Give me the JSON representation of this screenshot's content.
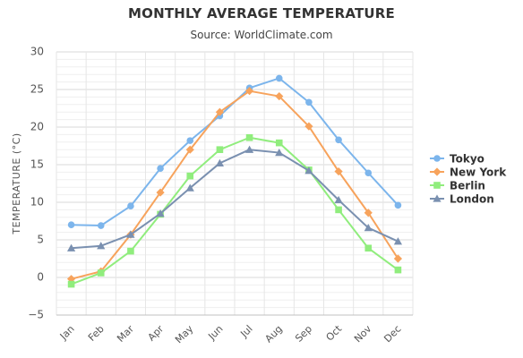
{
  "chart_data": {
    "type": "line",
    "title": "MONTHLY AVERAGE TEMPERATURE",
    "subtitle": "Source: WorldClimate.com",
    "xlabel": "",
    "ylabel": "TEMPERATURE (°C)",
    "categories": [
      "Jan",
      "Feb",
      "Mar",
      "Apr",
      "May",
      "Jun",
      "Jul",
      "Aug",
      "Sep",
      "Oct",
      "Nov",
      "Dec"
    ],
    "ylim": [
      -5,
      30
    ],
    "yticks": [
      -5,
      0,
      5,
      10,
      15,
      20,
      25,
      30
    ],
    "grid": true,
    "legend": "right",
    "series": [
      {
        "name": "Tokyo",
        "color": "#7cb5ec",
        "marker": "circle",
        "values": [
          7.0,
          6.9,
          9.5,
          14.5,
          18.2,
          21.5,
          25.2,
          26.5,
          23.3,
          18.3,
          13.9,
          9.6
        ]
      },
      {
        "name": "New York",
        "color": "#f7a35c",
        "marker": "diamond",
        "values": [
          -0.2,
          0.8,
          5.7,
          11.3,
          17.0,
          22.0,
          24.8,
          24.1,
          20.1,
          14.1,
          8.6,
          2.5
        ]
      },
      {
        "name": "Berlin",
        "color": "#90ed7d",
        "marker": "square",
        "values": [
          -0.9,
          0.6,
          3.5,
          8.4,
          13.5,
          17.0,
          18.6,
          17.9,
          14.3,
          9.0,
          3.9,
          1.0
        ]
      },
      {
        "name": "London",
        "color": "#7a90b0",
        "marker": "triangle",
        "values": [
          3.9,
          4.2,
          5.7,
          8.5,
          11.9,
          15.2,
          17.0,
          16.6,
          14.2,
          10.3,
          6.6,
          4.8
        ]
      }
    ]
  }
}
